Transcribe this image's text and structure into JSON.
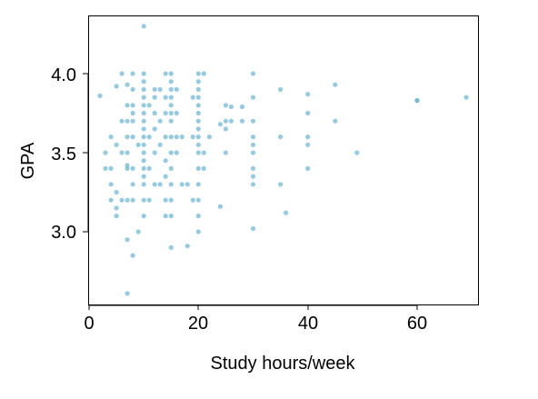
{
  "chart_data": {
    "type": "scatter",
    "title": "",
    "xlabel": "Study hours/week",
    "ylabel": "GPA",
    "xlim": [
      -1,
      72
    ],
    "ylim": [
      2.55,
      4.37
    ],
    "xticks": [
      0,
      20,
      40,
      60
    ],
    "xtick_labels": [
      "0",
      "20",
      "40",
      "60"
    ],
    "yticks": [
      3.0,
      3.5,
      4.0
    ],
    "ytick_labels": [
      "3.0",
      "3.5",
      "4.0"
    ],
    "grid": false,
    "marker_color": "#6bb3d0",
    "series": [
      {
        "points": [
          [
            2,
            3.86
          ],
          [
            3,
            3.4
          ],
          [
            3,
            3.5
          ],
          [
            4,
            3.2
          ],
          [
            4,
            3.4
          ],
          [
            4,
            3.6
          ],
          [
            4,
            3.3
          ],
          [
            5,
            3.92
          ],
          [
            5,
            3.55
          ],
          [
            5,
            3.25
          ],
          [
            5,
            3.15
          ],
          [
            5,
            3.1
          ],
          [
            6,
            4.0
          ],
          [
            6,
            3.7
          ],
          [
            6,
            3.5
          ],
          [
            6,
            3.2
          ],
          [
            7,
            3.93
          ],
          [
            7,
            3.8
          ],
          [
            7,
            3.7
          ],
          [
            7,
            3.6
          ],
          [
            7,
            3.5
          ],
          [
            7,
            3.42
          ],
          [
            7,
            3.4
          ],
          [
            7,
            3.2
          ],
          [
            7,
            2.95
          ],
          [
            7,
            2.61
          ],
          [
            8,
            4.0
          ],
          [
            8,
            3.9
          ],
          [
            8,
            3.8
          ],
          [
            8,
            3.75
          ],
          [
            8,
            3.7
          ],
          [
            8,
            3.6
          ],
          [
            8,
            3.4
          ],
          [
            8,
            3.3
          ],
          [
            8,
            3.2
          ],
          [
            8,
            2.85
          ],
          [
            9,
            3.55
          ],
          [
            9,
            3.0
          ],
          [
            10,
            4.3
          ],
          [
            10,
            4.0
          ],
          [
            10,
            3.95
          ],
          [
            10,
            3.9
          ],
          [
            10,
            3.85
          ],
          [
            10,
            3.8
          ],
          [
            10,
            3.75
          ],
          [
            10,
            3.7
          ],
          [
            10,
            3.65
          ],
          [
            10,
            3.6
          ],
          [
            10,
            3.55
          ],
          [
            10,
            3.5
          ],
          [
            10,
            3.45
          ],
          [
            10,
            3.4
          ],
          [
            10,
            3.35
          ],
          [
            10,
            3.3
          ],
          [
            10,
            3.2
          ],
          [
            10,
            3.1
          ],
          [
            11,
            3.8
          ],
          [
            11,
            3.6
          ],
          [
            11,
            3.4
          ],
          [
            11,
            3.2
          ],
          [
            12,
            3.9
          ],
          [
            12,
            3.85
          ],
          [
            12,
            3.75
          ],
          [
            12,
            3.65
          ],
          [
            12,
            3.5
          ],
          [
            12,
            3.3
          ],
          [
            13,
            3.9
          ],
          [
            13,
            3.7
          ],
          [
            13,
            3.55
          ],
          [
            13,
            3.3
          ],
          [
            14,
            4.0
          ],
          [
            14,
            3.85
          ],
          [
            14,
            3.75
          ],
          [
            14,
            3.6
          ],
          [
            14,
            3.45
          ],
          [
            14,
            3.35
          ],
          [
            14,
            3.2
          ],
          [
            14,
            3.1
          ],
          [
            15,
            4.0
          ],
          [
            15,
            3.95
          ],
          [
            15,
            3.9
          ],
          [
            15,
            3.85
          ],
          [
            15,
            3.8
          ],
          [
            15,
            3.75
          ],
          [
            15,
            3.7
          ],
          [
            15,
            3.6
          ],
          [
            15,
            3.5
          ],
          [
            15,
            3.4
          ],
          [
            15,
            3.3
          ],
          [
            15,
            3.2
          ],
          [
            15,
            3.1
          ],
          [
            15,
            2.9
          ],
          [
            16,
            3.9
          ],
          [
            16,
            3.75
          ],
          [
            16,
            3.6
          ],
          [
            16,
            3.5
          ],
          [
            17,
            3.6
          ],
          [
            17,
            3.3
          ],
          [
            18,
            3.3
          ],
          [
            18,
            2.91
          ],
          [
            19,
            3.85
          ],
          [
            19,
            3.6
          ],
          [
            19,
            3.2
          ],
          [
            20,
            4.0
          ],
          [
            20,
            3.95
          ],
          [
            20,
            3.9
          ],
          [
            20,
            3.85
          ],
          [
            20,
            3.8
          ],
          [
            20,
            3.75
          ],
          [
            20,
            3.7
          ],
          [
            20,
            3.65
          ],
          [
            20,
            3.6
          ],
          [
            20,
            3.55
          ],
          [
            20,
            3.5
          ],
          [
            20,
            3.4
          ],
          [
            20,
            3.3
          ],
          [
            20,
            3.2
          ],
          [
            20,
            3.1
          ],
          [
            20,
            3.0
          ],
          [
            21,
            4.0
          ],
          [
            21,
            3.5
          ],
          [
            21,
            3.4
          ],
          [
            22,
            3.6
          ],
          [
            24,
            3.68
          ],
          [
            24,
            3.16
          ],
          [
            25,
            3.8
          ],
          [
            25,
            3.7
          ],
          [
            25,
            3.65
          ],
          [
            25,
            3.5
          ],
          [
            26,
            3.79
          ],
          [
            26,
            3.7
          ],
          [
            28,
            3.79
          ],
          [
            28,
            3.7
          ],
          [
            30,
            4.0
          ],
          [
            30,
            3.85
          ],
          [
            30,
            3.7
          ],
          [
            30,
            3.6
          ],
          [
            30,
            3.55
          ],
          [
            30,
            3.5
          ],
          [
            30,
            3.4
          ],
          [
            30,
            3.35
          ],
          [
            30,
            3.3
          ],
          [
            30,
            3.02
          ],
          [
            35,
            3.9
          ],
          [
            35,
            3.6
          ],
          [
            35,
            3.3
          ],
          [
            36,
            3.12
          ],
          [
            40,
            3.87
          ],
          [
            40,
            3.75
          ],
          [
            40,
            3.6
          ],
          [
            40,
            3.55
          ],
          [
            40,
            3.4
          ],
          [
            45,
            3.93
          ],
          [
            45,
            3.7
          ],
          [
            49,
            3.5
          ],
          [
            60,
            3.83
          ],
          [
            60,
            3.83
          ],
          [
            69,
            3.85
          ]
        ]
      }
    ]
  }
}
